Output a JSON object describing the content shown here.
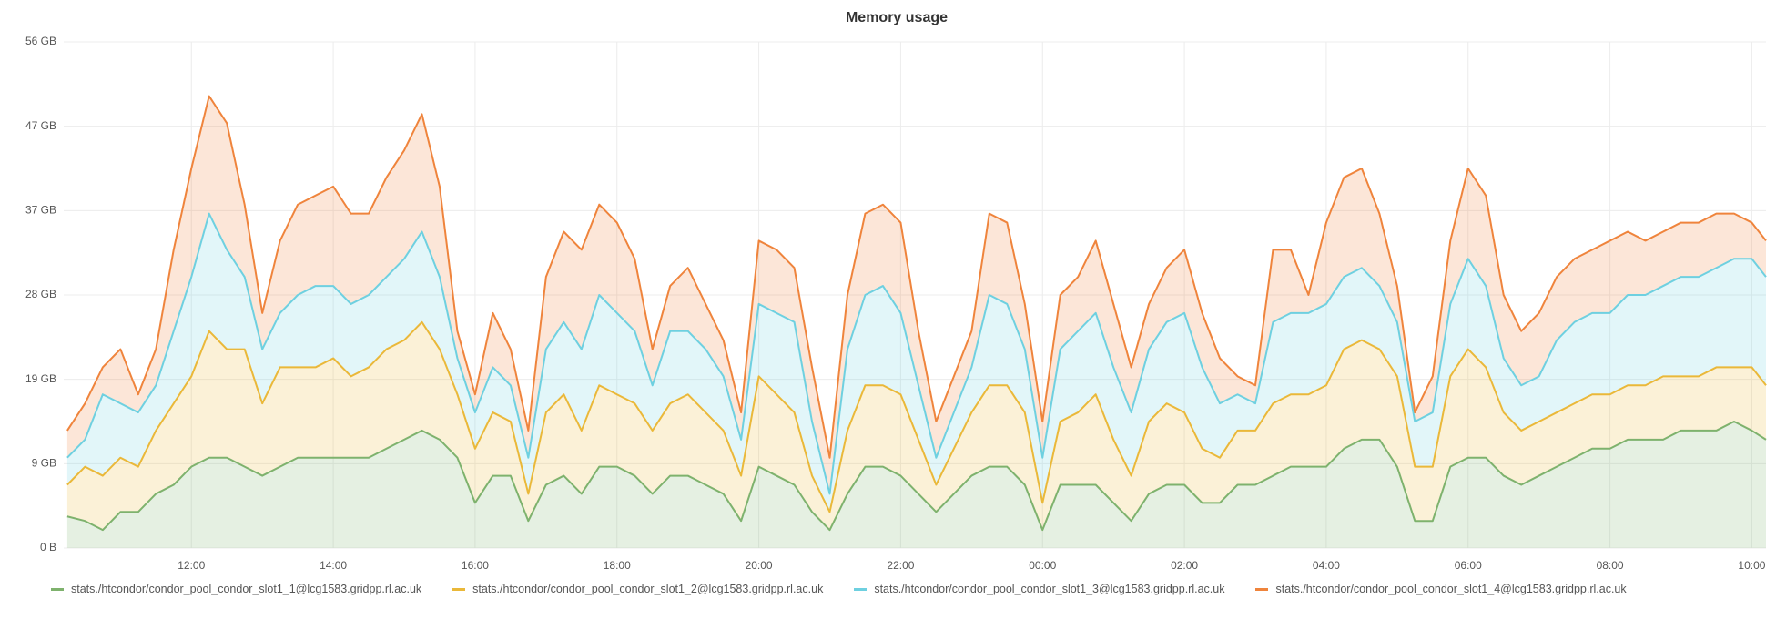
{
  "chart_data": {
    "type": "stacked-area",
    "title": "Memory usage",
    "x": [
      10.25,
      10.5,
      10.75,
      11,
      11.25,
      11.5,
      11.75,
      12,
      12.25,
      12.5,
      12.75,
      13,
      13.25,
      13.5,
      13.75,
      14,
      14.25,
      14.5,
      14.75,
      15,
      15.25,
      15.5,
      15.75,
      16,
      16.25,
      16.5,
      16.75,
      17,
      17.25,
      17.5,
      17.75,
      18,
      18.25,
      18.5,
      18.75,
      19,
      19.25,
      19.5,
      19.75,
      20,
      20.25,
      20.5,
      20.75,
      21,
      21.25,
      21.5,
      21.75,
      22,
      22.25,
      22.5,
      22.75,
      23,
      23.25,
      23.5,
      23.75,
      24,
      24.25,
      24.5,
      24.75,
      25,
      25.25,
      25.5,
      25.75,
      26,
      26.25,
      26.5,
      26.75,
      27,
      27.25,
      27.5,
      27.75,
      28,
      28.25,
      28.5,
      28.75,
      29,
      29.25,
      29.5,
      29.75,
      30,
      30.25,
      30.5,
      30.75,
      31,
      31.25,
      31.5,
      31.75,
      32,
      32.25,
      32.5,
      32.75,
      33,
      33.25,
      33.5,
      33.75,
      34,
      34.2
    ],
    "series": [
      {
        "name": "stats./htcondor/condor_pool_condor_slot1_1@lcg1583.gridpp.rl.ac.uk",
        "color": "#7eb26d",
        "values": [
          3.5,
          3,
          2,
          4,
          4,
          6,
          7,
          9,
          10,
          10,
          9,
          8,
          9,
          10,
          10,
          10,
          10,
          10,
          11,
          12,
          13,
          12,
          10,
          5,
          8,
          8,
          3,
          7,
          8,
          6,
          9,
          9,
          8,
          6,
          8,
          8,
          7,
          6,
          3,
          9,
          8,
          7,
          4,
          2,
          6,
          9,
          9,
          8,
          6,
          4,
          6,
          8,
          9,
          9,
          7,
          2,
          7,
          7,
          7,
          5,
          3,
          6,
          7,
          7,
          5,
          5,
          7,
          7,
          8,
          9,
          9,
          9,
          11,
          12,
          12,
          9,
          3,
          3,
          9,
          10,
          10,
          8,
          7,
          8,
          9,
          10,
          11,
          11,
          12,
          12,
          12,
          13,
          13,
          13,
          14,
          13,
          12
        ]
      },
      {
        "name": "stats./htcondor/condor_pool_condor_slot1_2@lcg1583.gridpp.rl.ac.uk",
        "color": "#eab839",
        "values": [
          3.5,
          6,
          6,
          6,
          5,
          7,
          9,
          10,
          14,
          12,
          13,
          8,
          11,
          10,
          10,
          11,
          9,
          10,
          11,
          11,
          12,
          10,
          7,
          6,
          7,
          6,
          3,
          8,
          9,
          7,
          9,
          8,
          8,
          7,
          8,
          9,
          8,
          7,
          5,
          10,
          9,
          8,
          4,
          2,
          7,
          9,
          9,
          9,
          6,
          3,
          5,
          7,
          9,
          9,
          8,
          3,
          7,
          8,
          10,
          7,
          5,
          8,
          9,
          8,
          6,
          5,
          6,
          6,
          8,
          8,
          8,
          9,
          11,
          11,
          10,
          10,
          6,
          6,
          10,
          12,
          10,
          7,
          6,
          6,
          6,
          6,
          6,
          6,
          6,
          6,
          7,
          6,
          6,
          7,
          6,
          7,
          6
        ]
      },
      {
        "name": "stats./htcondor/condor_pool_condor_slot1_3@lcg1583.gridpp.rl.ac.uk",
        "color": "#6ed0e0",
        "values": [
          3,
          3,
          9,
          6,
          6,
          5,
          8,
          11,
          13,
          11,
          8,
          6,
          6,
          8,
          9,
          8,
          8,
          8,
          8,
          9,
          10,
          8,
          4,
          4,
          5,
          4,
          4,
          7,
          8,
          9,
          10,
          9,
          8,
          5,
          8,
          7,
          7,
          6,
          4,
          8,
          9,
          10,
          6,
          2,
          9,
          10,
          11,
          9,
          6,
          3,
          4,
          5,
          10,
          9,
          7,
          5,
          8,
          9,
          9,
          8,
          7,
          8,
          9,
          11,
          9,
          6,
          4,
          3,
          9,
          9,
          9,
          9,
          8,
          8,
          7,
          6,
          5,
          6,
          8,
          10,
          9,
          6,
          5,
          5,
          8,
          9,
          9,
          9,
          10,
          10,
          10,
          11,
          11,
          11,
          12,
          12,
          12
        ]
      },
      {
        "name": "stats./htcondor/condor_pool_condor_slot1_4@lcg1583.gridpp.rl.ac.uk",
        "color": "#ef843c",
        "values": [
          3,
          4,
          3,
          6,
          2,
          4,
          9,
          12,
          13,
          14,
          8,
          4,
          8,
          10,
          10,
          11,
          10,
          9,
          11,
          12,
          13,
          10,
          3,
          2,
          6,
          4,
          3,
          8,
          10,
          11,
          10,
          10,
          8,
          4,
          5,
          7,
          5,
          4,
          3,
          7,
          7,
          6,
          6,
          4,
          6,
          9,
          9,
          10,
          6,
          4,
          4,
          4,
          9,
          9,
          5,
          4,
          6,
          6,
          8,
          7,
          5,
          5,
          6,
          7,
          6,
          5,
          2,
          2,
          8,
          7,
          2,
          9,
          11,
          11,
          8,
          4,
          1,
          4,
          7,
          10,
          10,
          7,
          6,
          7,
          7,
          7,
          7,
          8,
          7,
          6,
          6,
          6,
          6,
          6,
          5,
          4,
          4
        ]
      }
    ],
    "xlim": [
      10.2,
      34.2
    ],
    "xticks": [
      {
        "value": 12,
        "label": "12:00"
      },
      {
        "value": 14,
        "label": "14:00"
      },
      {
        "value": 16,
        "label": "16:00"
      },
      {
        "value": 18,
        "label": "18:00"
      },
      {
        "value": 20,
        "label": "20:00"
      },
      {
        "value": 22,
        "label": "22:00"
      },
      {
        "value": 24,
        "label": "00:00"
      },
      {
        "value": 26,
        "label": "02:00"
      },
      {
        "value": 28,
        "label": "04:00"
      },
      {
        "value": 30,
        "label": "06:00"
      },
      {
        "value": 32,
        "label": "08:00"
      },
      {
        "value": 34,
        "label": "10:00"
      }
    ],
    "ylim": [
      0,
      56
    ],
    "yticks": [
      {
        "value": 0,
        "label": "0 B"
      },
      {
        "value": 9.33,
        "label": "9 GB"
      },
      {
        "value": 18.67,
        "label": "19 GB"
      },
      {
        "value": 28,
        "label": "28 GB"
      },
      {
        "value": 37.33,
        "label": "37 GB"
      },
      {
        "value": 46.67,
        "label": "47 GB"
      },
      {
        "value": 56,
        "label": "56 GB"
      }
    ],
    "grid": true,
    "stacked": true,
    "fill_opacity": 0.2
  }
}
